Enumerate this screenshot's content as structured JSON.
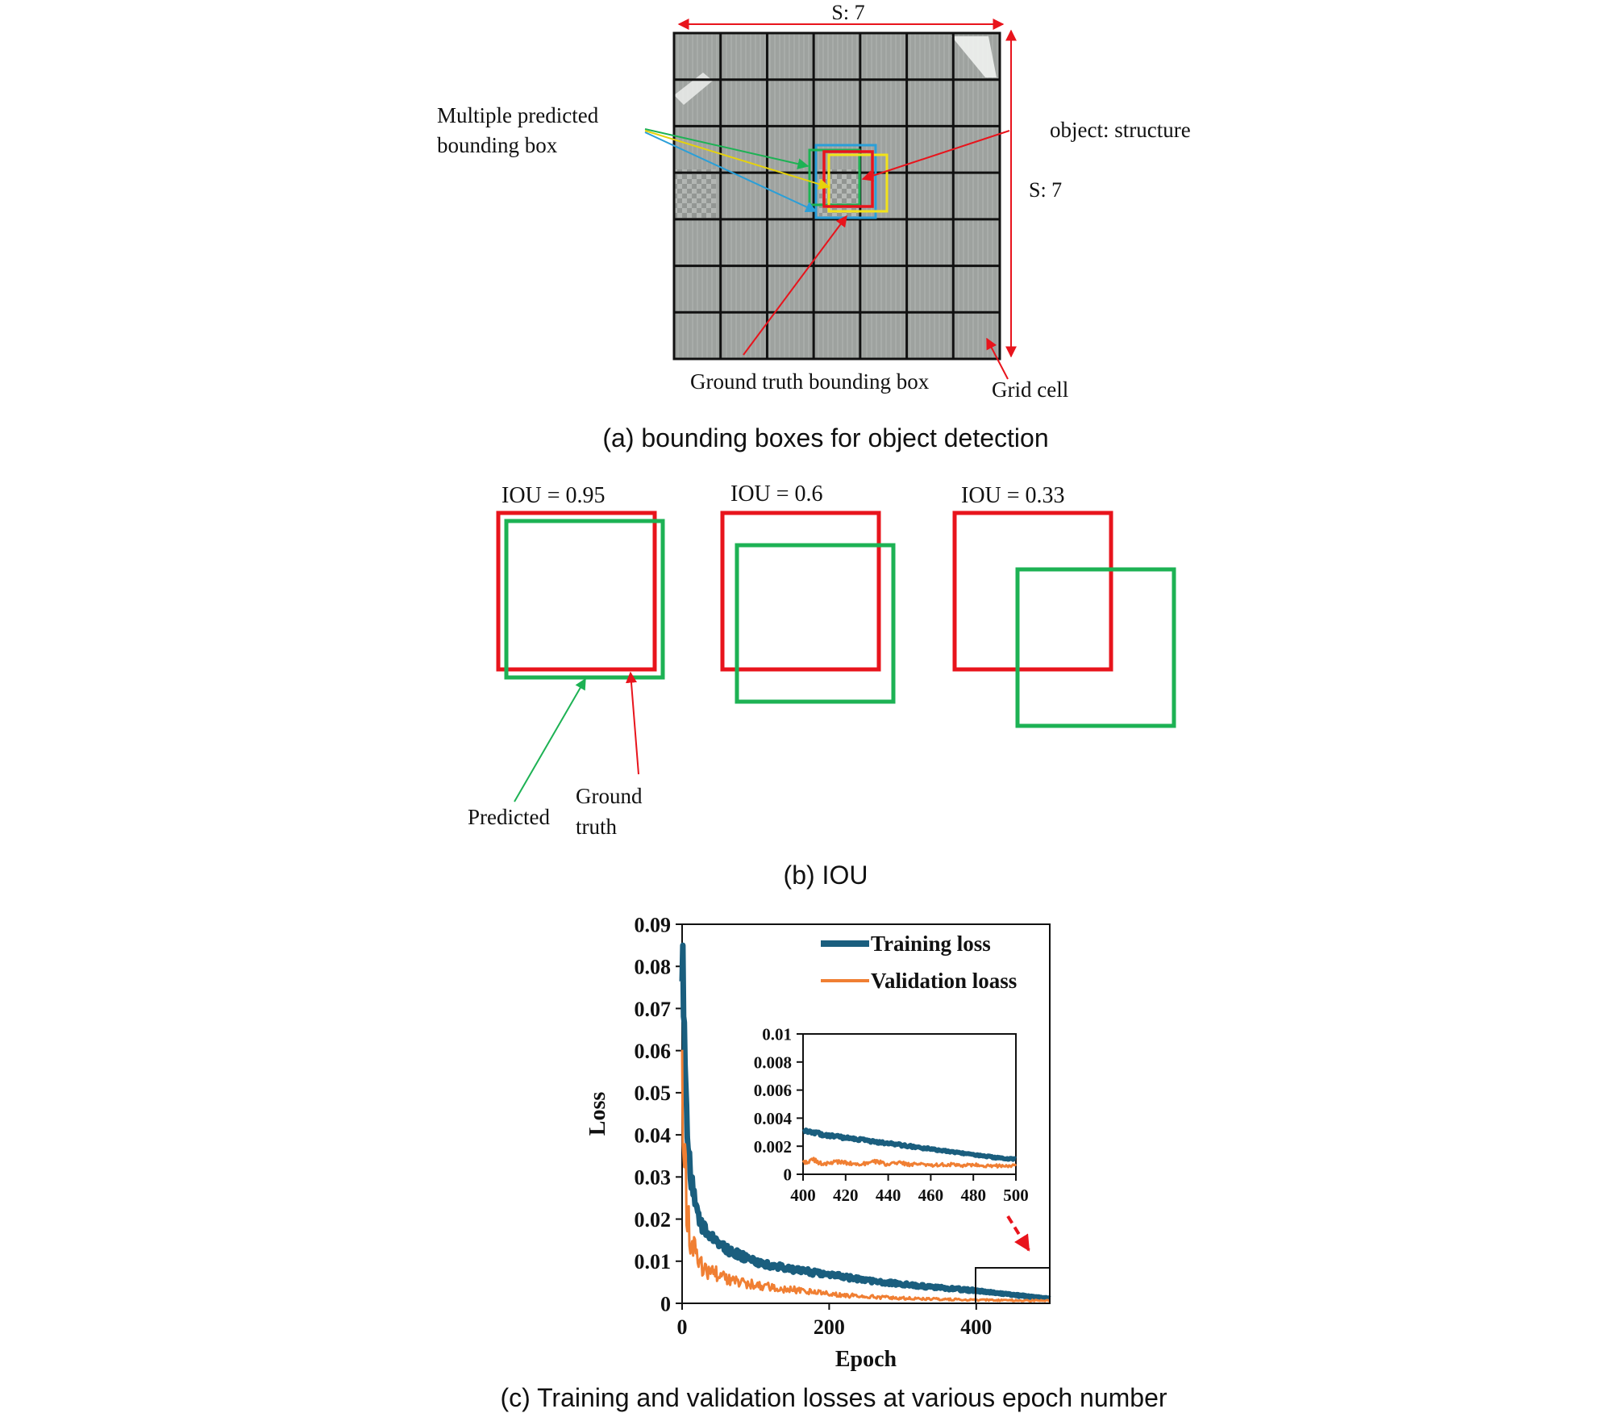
{
  "panel_a": {
    "caption": "(a)  bounding  boxes  for  object  detection",
    "grid": {
      "rows": 7,
      "cols": 7
    },
    "labels": {
      "s_top": "S: 7",
      "s_right": "S: 7",
      "multiple_line1": "Multiple predicted",
      "multiple_line2": "bounding  box",
      "object": "object: structure",
      "ground_truth": "Ground  truth  bounding  box",
      "grid_cell": "Grid  cell"
    },
    "colors": {
      "arrow": "#e8141c",
      "ground_truth": "#e8141c",
      "green": "#1db254",
      "yellow": "#f2e21a",
      "blue": "#2a9fd8"
    }
  },
  "panel_b": {
    "caption": "(b)  IOU",
    "examples": [
      {
        "label": "IOU = 0.95"
      },
      {
        "label": "IOU = 0.6"
      },
      {
        "label": "IOU = 0.33"
      }
    ],
    "legend": {
      "predicted": "Predicted",
      "ground_line1": "Ground",
      "ground_line2": "truth"
    },
    "colors": {
      "ground_truth": "#e8141c",
      "predicted": "#1db254"
    }
  },
  "panel_c": {
    "caption": "(c)  Training  and  validation  losses  at  various  epoch  number"
  },
  "chart_data": [
    {
      "type": "line",
      "xlabel": "Epoch",
      "ylabel": "Loss",
      "xlim": [
        0,
        500
      ],
      "ylim": [
        0,
        0.09
      ],
      "xticks": [
        "0",
        "200",
        "400"
      ],
      "yticks": [
        "0",
        "0.01",
        "0.02",
        "0.03",
        "0.04",
        "0.05",
        "0.06",
        "0.07",
        "0.08",
        "0.09"
      ],
      "legend_position": "top-right",
      "grid": false,
      "series": [
        {
          "name": "Training loss",
          "color": "#1a5e7e",
          "x": [
            0,
            2,
            4,
            6,
            8,
            10,
            15,
            20,
            25,
            30,
            40,
            50,
            60,
            80,
            100,
            125,
            150,
            200,
            250,
            300,
            350,
            400,
            450,
            500
          ],
          "y": [
            0.084,
            0.074,
            0.058,
            0.046,
            0.038,
            0.033,
            0.026,
            0.022,
            0.0195,
            0.0175,
            0.0155,
            0.014,
            0.0128,
            0.0112,
            0.0098,
            0.0088,
            0.008,
            0.0068,
            0.0055,
            0.0045,
            0.0037,
            0.003,
            0.002,
            0.0011
          ]
        },
        {
          "name": "Validation loass",
          "color": "#f07f33",
          "x": [
            0,
            2,
            4,
            6,
            8,
            10,
            15,
            20,
            25,
            30,
            40,
            50,
            60,
            80,
            100,
            125,
            150,
            200,
            250,
            300,
            350,
            400,
            450,
            500
          ],
          "y": [
            0.05,
            0.042,
            0.032,
            0.025,
            0.02,
            0.017,
            0.013,
            0.011,
            0.0095,
            0.0085,
            0.0075,
            0.0065,
            0.006,
            0.0052,
            0.0045,
            0.0038,
            0.0032,
            0.0022,
            0.0016,
            0.0012,
            0.001,
            0.0008,
            0.0007,
            0.0006
          ]
        }
      ]
    },
    {
      "type": "line",
      "xlim": [
        400,
        500
      ],
      "ylim": [
        0,
        0.01
      ],
      "xticks": [
        "400",
        "420",
        "440",
        "460",
        "480",
        "500"
      ],
      "yticks": [
        "0",
        "0.002",
        "0.004",
        "0.006",
        "0.008",
        "0.01"
      ],
      "grid": false,
      "series": [
        {
          "color": "#1a5e7e",
          "x": [
            400,
            405,
            410,
            415,
            420,
            425,
            430,
            435,
            440,
            445,
            450,
            455,
            460,
            465,
            470,
            475,
            480,
            485,
            490,
            495,
            500
          ],
          "y": [
            0.0031,
            0.003,
            0.0028,
            0.0027,
            0.0026,
            0.0025,
            0.0024,
            0.0023,
            0.0022,
            0.0021,
            0.002,
            0.0019,
            0.0018,
            0.0017,
            0.0016,
            0.0015,
            0.0014,
            0.0013,
            0.0012,
            0.0011,
            0.0011
          ]
        },
        {
          "color": "#f07f33",
          "x": [
            400,
            405,
            410,
            415,
            420,
            425,
            430,
            435,
            440,
            445,
            450,
            455,
            460,
            465,
            470,
            475,
            480,
            485,
            490,
            495,
            500
          ],
          "y": [
            0.0008,
            0.001,
            0.0007,
            0.0009,
            0.0008,
            0.0007,
            0.0008,
            0.0009,
            0.0007,
            0.0008,
            0.0007,
            0.0008,
            0.0006,
            0.0007,
            0.0007,
            0.0006,
            0.0007,
            0.0006,
            0.0006,
            0.0006,
            0.0006
          ]
        }
      ]
    }
  ]
}
